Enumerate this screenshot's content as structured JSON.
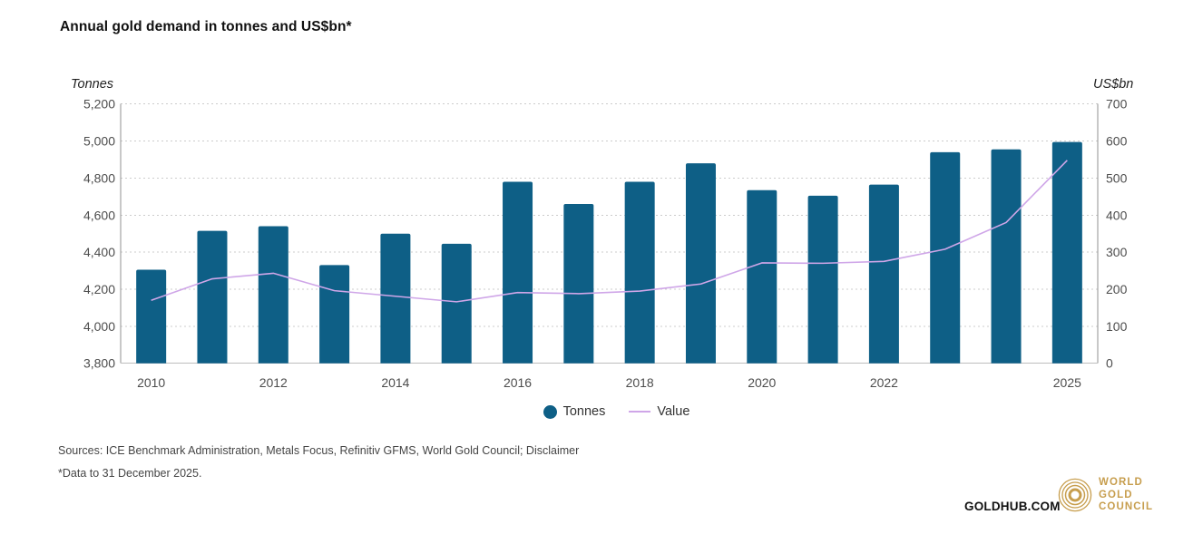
{
  "header": {
    "title": "Annual gold demand in tonnes and US$bn*"
  },
  "chart_data": {
    "type": "combo",
    "title": "Annual gold demand in tonnes and US$bn*",
    "categories": [
      "2010",
      "2011",
      "2012",
      "2013",
      "2014",
      "2015",
      "2016",
      "2017",
      "2018",
      "2019",
      "2020",
      "2021",
      "2022",
      "2023",
      "2024",
      "2025"
    ],
    "x_tick_labels": [
      "2010",
      "2012",
      "2014",
      "2016",
      "2018",
      "2020",
      "2022",
      "2025"
    ],
    "axes": {
      "left": {
        "title": "Tonnes",
        "min": 3800,
        "max": 5200,
        "step": 200,
        "tick_labels": [
          "3,800",
          "4,000",
          "4,200",
          "4,400",
          "4,600",
          "4,800",
          "5,000",
          "5,200"
        ]
      },
      "right": {
        "title": "US$bn",
        "min": 0,
        "max": 700,
        "step": 100,
        "tick_labels": [
          "0",
          "100",
          "200",
          "300",
          "400",
          "500",
          "600",
          "700"
        ]
      }
    },
    "series": [
      {
        "name": "Tonnes",
        "type": "bar",
        "axis": "left",
        "color": "#0E5F86",
        "values": [
          4305,
          4515,
          4540,
          4330,
          4500,
          4445,
          4780,
          4660,
          4780,
          4880,
          4735,
          4705,
          4765,
          4940,
          4955,
          4995
        ]
      },
      {
        "name": "Value",
        "type": "line",
        "axis": "right",
        "color": "#CFA6E8",
        "values": [
          170,
          228,
          243,
          196,
          181,
          166,
          191,
          188,
          195,
          214,
          271,
          270,
          275,
          308,
          380,
          548
        ]
      }
    ],
    "grid": {
      "horizontal": "dotted"
    },
    "legend_position": "bottom-center"
  },
  "legend": {
    "items": [
      {
        "label": "Tonnes",
        "marker": "circle",
        "color": "#0E5F86"
      },
      {
        "label": "Value",
        "marker": "line",
        "color": "#CFA6E8"
      }
    ]
  },
  "footer": {
    "sources_prefix": "Sources: ICE Benchmark Administration, Metals Focus, Refinitiv GFMS, World Gold Council; ",
    "disclaimer_label": "Disclaimer",
    "note": "*Data to 31 December 2025."
  },
  "branding": {
    "site_label": "GOLDHUB.COM",
    "logo_lines": [
      "WORLD",
      "GOLD",
      "COUNCIL"
    ],
    "logo_color": "#C79E4E"
  }
}
